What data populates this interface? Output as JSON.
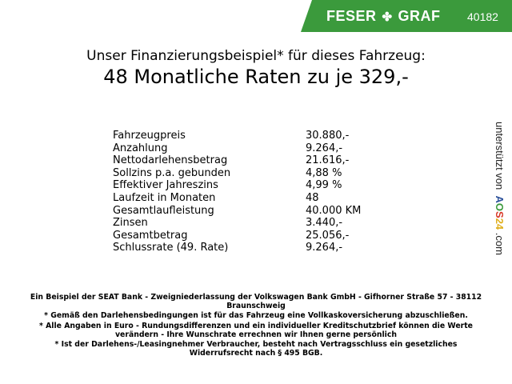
{
  "header": {
    "brand": "FESER",
    "brand2": "GRAF",
    "brand_icon": "clover-icon",
    "code": "40182",
    "color": "#3b9a3c"
  },
  "title": {
    "line1": "Unser Finanzierungsbeispiel* für dieses Fahrzeug:",
    "line2": "48 Monatliche Raten zu je 329,-"
  },
  "rows": [
    {
      "label": "Fahrzeugpreis",
      "value": "30.880,-"
    },
    {
      "label": "Anzahlung",
      "value": "9.264,-"
    },
    {
      "label": "Nettodarlehensbetrag",
      "value": "21.616,-"
    },
    {
      "label": "Sollzins p.a. gebunden",
      "value": "4,88 %"
    },
    {
      "label": "Effektiver Jahreszins",
      "value": "4,99 %"
    },
    {
      "label": "Laufzeit in Monaten",
      "value": "48"
    },
    {
      "label": "Gesamtlaufleistung",
      "value": "40.000 KM"
    },
    {
      "label": "Zinsen",
      "value": "3.440,-"
    },
    {
      "label": "Gesamtbetrag",
      "value": "25.056,-"
    },
    {
      "label": "Schlussrate (49. Rate)",
      "value": "9.264,-"
    }
  ],
  "side": {
    "text": "unterstützt von",
    "logo": "AOS24",
    ".com": ".com"
  },
  "footer": [
    "Ein Beispiel der SEAT Bank - Zweigniederlassung der Volkswagen Bank GmbH - Gifhorner Straße 57 - 38112 Braunschweig",
    "* Gemäß den Darlehensbedingungen ist für das Fahrzeug eine Vollkaskoversicherung abzuschließen.",
    "* Alle Angaben in Euro - Rundungsdifferenzen und ein individueller Kreditschutzbrief können die Werte verändern - Ihre Wunschrate errechnen wir Ihnen gerne persönlich",
    "* Ist der Darlehens-/Leasingnehmer Verbraucher, besteht nach Vertragsschluss ein gesetzliches Widerrufsrecht nach § 495 BGB."
  ]
}
